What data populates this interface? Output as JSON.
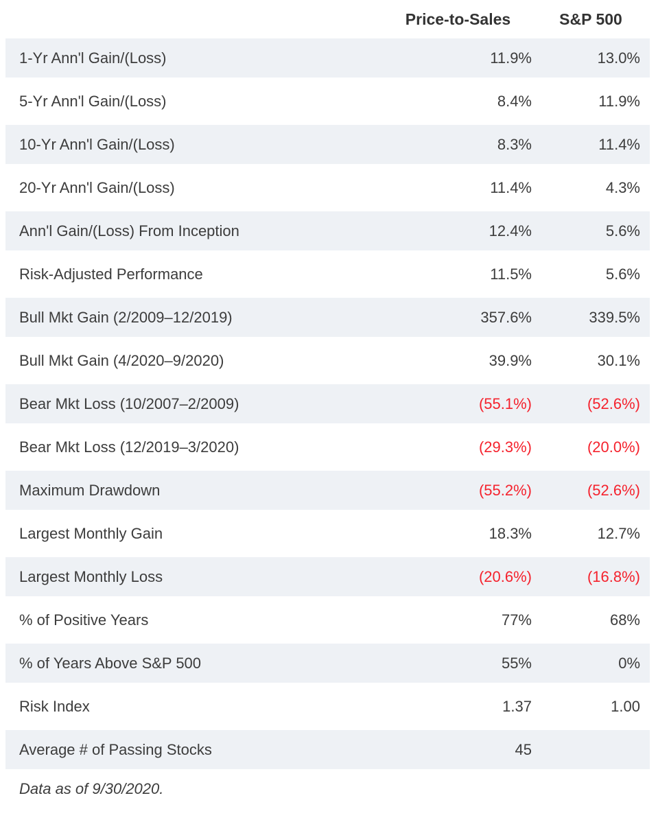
{
  "colors": {
    "negative_value": "#f5222d",
    "shaded_row": "#eef1f5",
    "text": "#3c3c3c"
  },
  "chart_data": {
    "type": "table",
    "columns": [
      "",
      "Price-to-Sales",
      "S&P 500"
    ],
    "rows": [
      [
        "1-Yr Ann'l Gain/(Loss)",
        "11.9%",
        "13.0%"
      ],
      [
        "5-Yr Ann'l Gain/(Loss)",
        "8.4%",
        "11.9%"
      ],
      [
        "10-Yr Ann'l Gain/(Loss)",
        "8.3%",
        "11.4%"
      ],
      [
        "20-Yr Ann'l Gain/(Loss)",
        "11.4%",
        "4.3%"
      ],
      [
        "Ann'l Gain/(Loss) From Inception",
        "12.4%",
        "5.6%"
      ],
      [
        "Risk-Adjusted Performance",
        "11.5%",
        "5.6%"
      ],
      [
        "Bull Mkt Gain (2/2009–12/2019)",
        "357.6%",
        "339.5%"
      ],
      [
        "Bull Mkt Gain (4/2020–9/2020)",
        "39.9%",
        "30.1%"
      ],
      [
        "Bear Mkt Loss (10/2007–2/2009)",
        "(55.1%)",
        "(52.6%)"
      ],
      [
        "Bear Mkt Loss (12/2019–3/2020)",
        "(29.3%)",
        "(20.0%)"
      ],
      [
        "Maximum Drawdown",
        "(55.2%)",
        "(52.6%)"
      ],
      [
        "Largest Monthly Gain",
        "18.3%",
        "12.7%"
      ],
      [
        "Largest Monthly Loss",
        "(20.6%)",
        "(16.8%)"
      ],
      [
        "% of Positive Years",
        "77%",
        "68%"
      ],
      [
        "% of Years Above S&P 500",
        "55%",
        "0%"
      ],
      [
        "Risk Index",
        "1.37",
        "1.00"
      ],
      [
        "Average # of Passing Stocks",
        "45",
        ""
      ]
    ],
    "negative_value_rows": [
      8,
      9,
      10,
      12
    ],
    "footnote": "Data as of 9/30/2020."
  }
}
